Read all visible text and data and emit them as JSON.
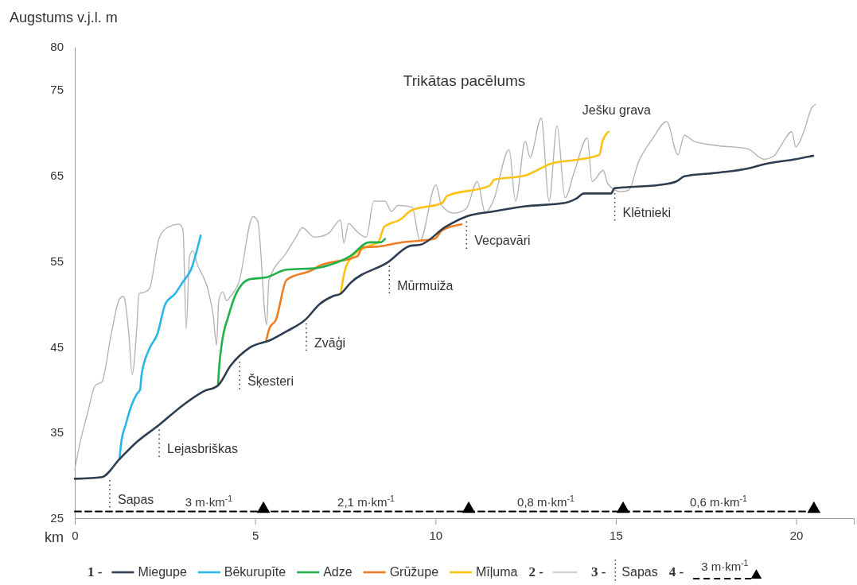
{
  "chart_data": {
    "type": "line",
    "title": "Trikātas pacēlums",
    "xlabel": "km",
    "ylabel": "Augstums v.j.l. m",
    "xlim": [
      0,
      21.6
    ],
    "xticks": [
      0,
      5,
      10,
      15,
      20
    ],
    "ylim": [
      25,
      80
    ],
    "yticks": [
      25,
      35,
      45,
      55,
      65,
      75,
      80
    ],
    "grid": false,
    "legend": "bottom",
    "series": [
      {
        "name": "Miegupe",
        "color": "#2d3e50",
        "x": [
          0,
          0.75,
          1.24,
          1.72,
          2.34,
          3.0,
          3.57,
          3.97,
          4.32,
          4.85,
          5.43,
          5.87,
          6.4,
          6.79,
          7.15,
          7.37,
          7.63,
          8.69,
          9.31,
          9.57,
          10.28,
          10.85,
          11.6,
          12.49,
          13.59,
          13.9,
          14.12,
          14.87,
          14.96,
          16.24,
          16.68,
          16.9,
          17.78,
          18.66,
          19.1,
          19.99,
          20.47
        ],
        "values": [
          29.6,
          29.8,
          31.9,
          33.9,
          35.9,
          38.2,
          39.8,
          40.5,
          42.8,
          44.9,
          45.8,
          46.8,
          48.2,
          50.0,
          50.9,
          51.2,
          52.4,
          54.9,
          56.8,
          56.9,
          59.0,
          60.2,
          60.8,
          61.4,
          61.8,
          62.3,
          62.9,
          62.9,
          63.5,
          63.9,
          64.3,
          64.9,
          65.3,
          65.8,
          66.3,
          66.9,
          67.3
        ]
      },
      {
        "name": "Bēkurupīte",
        "color": "#29b5e8",
        "x": [
          1.24,
          1.28,
          1.41,
          1.55,
          1.72,
          1.81,
          1.85,
          2.07,
          2.29,
          2.51,
          2.78,
          3.0,
          3.22,
          3.49
        ],
        "values": [
          31.9,
          33.6,
          35.9,
          37.9,
          39.5,
          40.0,
          41.7,
          44.8,
          46.5,
          50.0,
          51.2,
          52.6,
          54.0,
          58.0
        ]
      },
      {
        "name": "Adze",
        "color": "#22b04b",
        "x": [
          3.97,
          4.0,
          4.08,
          4.26,
          4.46,
          4.85,
          5.3,
          5.87,
          6.72,
          7.1,
          7.64,
          8.16,
          8.47,
          8.6
        ],
        "values": [
          40.5,
          42.5,
          45.5,
          48.6,
          51.1,
          52.9,
          53.1,
          54.0,
          54.2,
          54.6,
          55.6,
          57.2,
          57.2,
          57.6
        ]
      },
      {
        "name": "Grūžupe",
        "color": "#ee7d23",
        "x": [
          5.3,
          5.4,
          5.57,
          5.87,
          6.6,
          6.76,
          7.84,
          7.97,
          8.41,
          9.08,
          9.97,
          10.19,
          10.72
        ],
        "values": [
          45.6,
          47.2,
          48.1,
          52.8,
          54.0,
          54.4,
          55.6,
          56.6,
          56.7,
          57.2,
          57.6,
          58.6,
          59.3
        ]
      },
      {
        "name": "Mīļuma",
        "color": "#fcc213",
        "x": [
          7.37,
          7.48,
          7.61,
          8.1,
          8.41,
          8.58,
          9.04,
          9.32,
          10.19,
          10.32,
          11.5,
          11.63,
          12.49,
          13.22,
          13.88,
          14.54,
          14.63,
          14.8
        ],
        "values": [
          51.2,
          53.8,
          55.1,
          56.7,
          57.2,
          59.0,
          59.9,
          60.9,
          61.8,
          62.6,
          63.8,
          64.5,
          65.0,
          66.4,
          66.8,
          67.4,
          69.0,
          70.1
        ]
      },
      {
        "color": "#b0b0b0",
        "x": [
          0,
          0.13,
          0.35,
          0.57,
          0.75,
          1.01,
          1.24,
          1.35,
          1.5,
          1.59,
          1.72,
          1.78,
          1.94,
          2.07,
          2.34,
          2.56,
          2.9,
          3.0,
          3.09,
          3.18,
          3.27,
          3.4,
          3.71,
          3.84,
          3.93,
          3.99,
          4.1,
          4.21,
          4.32,
          4.54,
          4.94,
          5.07,
          5.32,
          5.38,
          5.87,
          6.13,
          6.31,
          6.64,
          7.02,
          7.37,
          7.46,
          7.59,
          7.81,
          8.08,
          8.29,
          8.6,
          8.78,
          8.96,
          9.35,
          9.57,
          10.01,
          10.17,
          10.5,
          10.85,
          11.16,
          11.38,
          11.6,
          12.04,
          12.22,
          12.49,
          12.62,
          12.93,
          13.15,
          13.37,
          13.59,
          13.86,
          14.21,
          14.34,
          14.65,
          14.78,
          15.13,
          15.36,
          15.62,
          16.02,
          16.41,
          16.72,
          16.9,
          17.16,
          17.78,
          18.66,
          19.1,
          19.39,
          19.55,
          19.88,
          19.99,
          20.21,
          20.43,
          20.54
        ],
        "values": [
          30.7,
          33.5,
          37.2,
          40.5,
          40.9,
          46.5,
          50.6,
          50.9,
          46.4,
          41.8,
          47.3,
          51.2,
          51.4,
          51.8,
          57.7,
          58.9,
          59.3,
          58.6,
          47.1,
          55.5,
          56.2,
          54.6,
          51.4,
          48.6,
          45.2,
          50.4,
          51.4,
          50.4,
          50.9,
          52.4,
          60.2,
          59.7,
          47.6,
          52.7,
          56.0,
          57.8,
          58.9,
          57.8,
          58.2,
          59.8,
          57.1,
          59.4,
          58.5,
          57.8,
          62.0,
          62.0,
          60.8,
          61.5,
          61.3,
          57.4,
          63.9,
          61.5,
          60.6,
          61.1,
          64.3,
          60.6,
          62.0,
          68.0,
          62.0,
          69.0,
          67.1,
          71.7,
          62.0,
          70.8,
          62.4,
          65.6,
          69.4,
          64.3,
          65.6,
          64.0,
          63.1,
          63.3,
          66.5,
          69.3,
          71.3,
          67.4,
          69.7,
          69.0,
          68.5,
          68.1,
          66.9,
          67.3,
          68.3,
          70.1,
          68.3,
          70.1,
          72.9,
          73.3
        ]
      },
      {
        "type": "line",
        "color": "#000000",
        "line_style": "dashed",
        "marker": "none",
        "x": [
          0,
          5.23,
          10.92,
          15.2,
          20.49
        ],
        "values": [
          25.8,
          25.8,
          25.8,
          25.8,
          25.8
        ]
      },
      {
        "type": "scatter",
        "color": "#000000",
        "marker": "triangle",
        "x": [
          5.23,
          10.92,
          15.2,
          20.49
        ],
        "values": [
          25.8,
          25.8,
          25.8,
          25.8
        ]
      }
    ],
    "annotations": [
      {
        "text": "Sapas",
        "x": 0.97,
        "y": 30.0
      },
      {
        "text": "Lejasbriškas",
        "x": 2.34,
        "y": 35.9
      },
      {
        "text": "Šķesteri",
        "x": 4.57,
        "y": 43.8
      },
      {
        "text": "Zvāģi",
        "x": 6.42,
        "y": 48.3
      },
      {
        "text": "Mūrmuiža",
        "x": 8.72,
        "y": 55.0
      },
      {
        "text": "Vecpavāri",
        "x": 10.86,
        "y": 60.2
      },
      {
        "text": "Klētnieki",
        "x": 14.97,
        "y": 63.5
      },
      "Ješku grava",
      "3 m·km$^{-1}$",
      "2,1 m·km$^{-1}$",
      "0,8 m·km$^{-1}$",
      "0,6 m·km$^{-1}$",
      "1 -",
      "2 -",
      "3 -",
      "Sapas",
      "4 -",
      "3 m·km$^{-1}$"
    ]
  }
}
